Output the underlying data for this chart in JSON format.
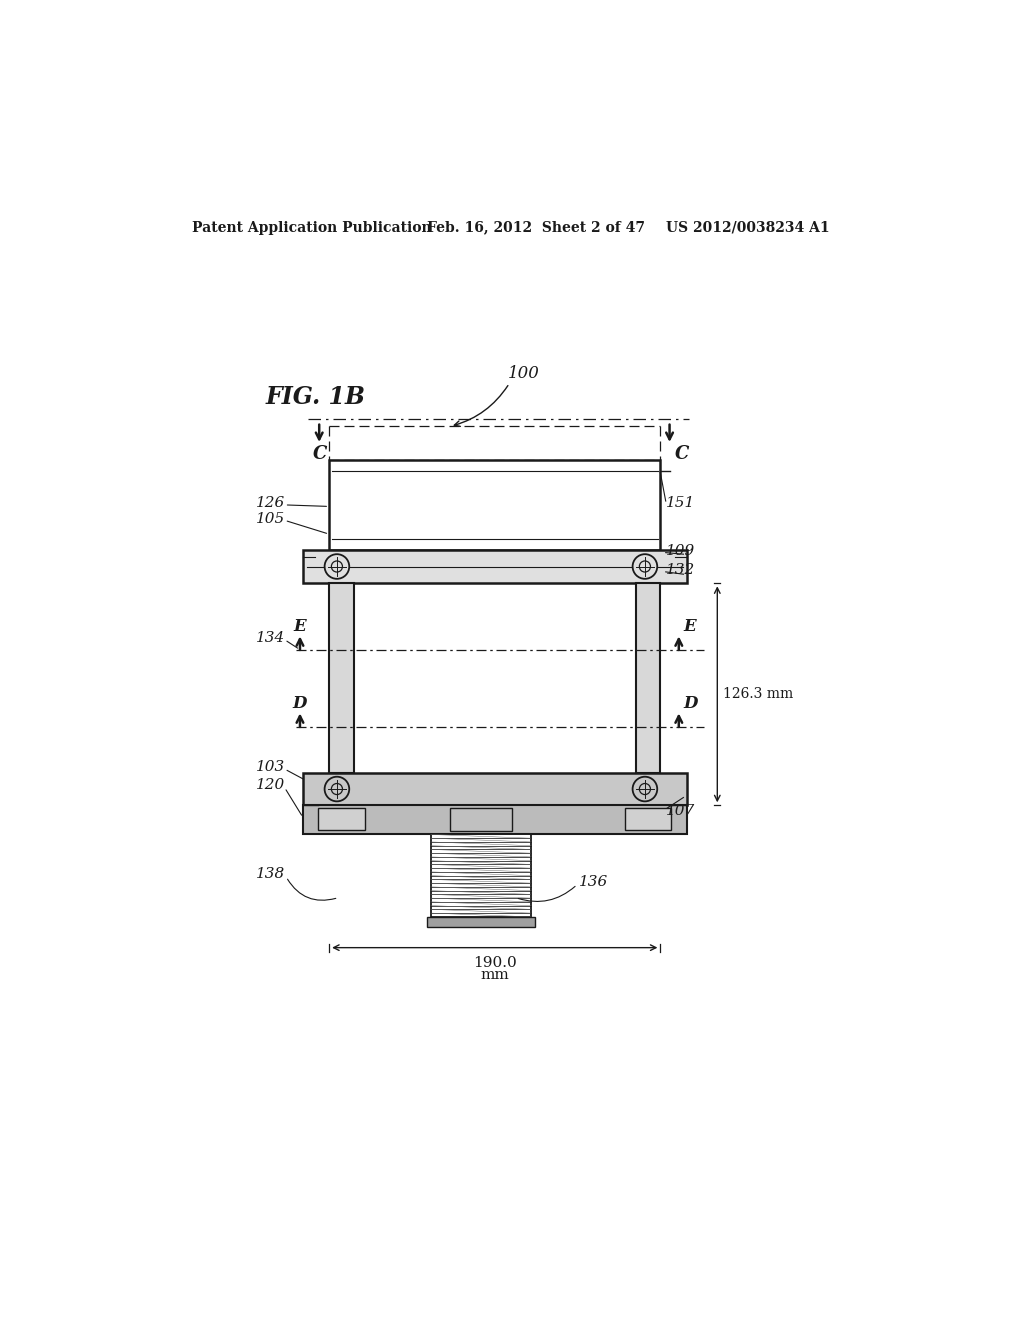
{
  "title_left": "Patent Application Publication",
  "title_mid": "Feb. 16, 2012  Sheet 2 of 47",
  "title_right": "US 2012/0038234 A1",
  "bg_color": "#ffffff",
  "line_color": "#1a1a1a",
  "dim_126mm": "126.3 mm",
  "dim_190_val": "190.0",
  "dim_190_unit": "mm"
}
